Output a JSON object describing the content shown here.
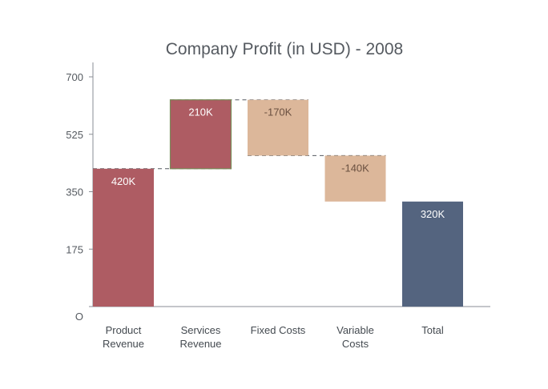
{
  "chart_data": {
    "type": "bar",
    "subtype": "waterfall",
    "title": "Company Profit (in USD) - 2008",
    "categories": [
      [
        "Product",
        "Revenue"
      ],
      [
        "Services",
        "Revenue"
      ],
      [
        "Fixed Costs"
      ],
      [
        "Variable",
        "Costs"
      ],
      [
        "Total"
      ]
    ],
    "bars": [
      {
        "start": 0,
        "end": 420,
        "label": "420K",
        "kind": "increase"
      },
      {
        "start": 420,
        "end": 630,
        "label": "210K",
        "kind": "increase"
      },
      {
        "start": 630,
        "end": 460,
        "label": "-170K",
        "kind": "decrease"
      },
      {
        "start": 460,
        "end": 320,
        "label": "-140K",
        "kind": "decrease"
      },
      {
        "start": 0,
        "end": 320,
        "label": "320K",
        "kind": "total"
      }
    ],
    "y_ticks": [
      0,
      175,
      350,
      525,
      700
    ],
    "y_tick_labels": [
      "O",
      "175",
      "350",
      "525",
      "700"
    ],
    "ylim": [
      0,
      700
    ],
    "grid": false,
    "colors": {
      "increase": "#ae5c63",
      "decrease": "#dcb79a",
      "total": "#54647f",
      "increase_edge": "#7a8c5a"
    }
  }
}
